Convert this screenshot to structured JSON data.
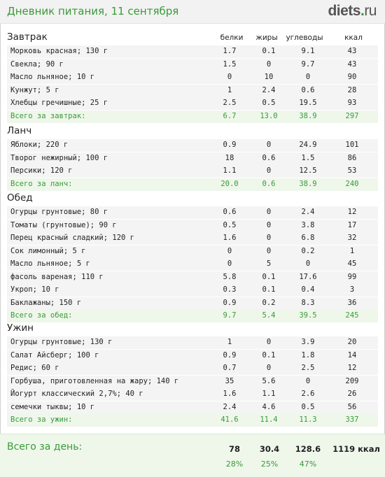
{
  "header": {
    "title": "Дневник питания, 11 сентября",
    "brand_main": "diets",
    "brand_dot": ".",
    "brand_tld": "ru"
  },
  "columns": {
    "protein": "белки",
    "fat": "жиры",
    "carbs": "углеводы",
    "kcal": "ккал"
  },
  "meals": [
    {
      "title": "Завтрак",
      "items": [
        {
          "name": "Морковь красная; 130 г",
          "p": "1.7",
          "f": "0.1",
          "c": "9.1",
          "k": "43"
        },
        {
          "name": "Свекла; 90 г",
          "p": "1.5",
          "f": "0",
          "c": "9.7",
          "k": "43"
        },
        {
          "name": "Масло льняное; 10 г",
          "p": "0",
          "f": "10",
          "c": "0",
          "k": "90"
        },
        {
          "name": "Кунжут; 5 г",
          "p": "1",
          "f": "2.4",
          "c": "0.6",
          "k": "28"
        },
        {
          "name": "Хлебцы гречишные; 25 г",
          "p": "2.5",
          "f": "0.5",
          "c": "19.5",
          "k": "93"
        }
      ],
      "total": {
        "name": "Всего за завтрак:",
        "p": "6.7",
        "f": "13.0",
        "c": "38.9",
        "k": "297"
      }
    },
    {
      "title": "Ланч",
      "items": [
        {
          "name": "Яблоки; 220 г",
          "p": "0.9",
          "f": "0",
          "c": "24.9",
          "k": "101"
        },
        {
          "name": "Творог нежирный; 100 г",
          "p": "18",
          "f": "0.6",
          "c": "1.5",
          "k": "86"
        },
        {
          "name": "Персики; 120 г",
          "p": "1.1",
          "f": "0",
          "c": "12.5",
          "k": "53"
        }
      ],
      "total": {
        "name": "Всего за ланч:",
        "p": "20.0",
        "f": "0.6",
        "c": "38.9",
        "k": "240"
      }
    },
    {
      "title": "Обед",
      "items": [
        {
          "name": "Огурцы грунтовые; 80 г",
          "p": "0.6",
          "f": "0",
          "c": "2.4",
          "k": "12"
        },
        {
          "name": "Томаты (грунтовые); 90 г",
          "p": "0.5",
          "f": "0",
          "c": "3.8",
          "k": "17"
        },
        {
          "name": "Перец красный сладкий; 120 г",
          "p": "1.6",
          "f": "0",
          "c": "6.8",
          "k": "32"
        },
        {
          "name": "Сок лимонный; 5 г",
          "p": "0",
          "f": "0",
          "c": "0.2",
          "k": "1"
        },
        {
          "name": "Масло льняное; 5 г",
          "p": "0",
          "f": "5",
          "c": "0",
          "k": "45"
        },
        {
          "name": "фасоль вареная; 110 г",
          "p": "5.8",
          "f": "0.1",
          "c": "17.6",
          "k": "99"
        },
        {
          "name": "Укроп; 10 г",
          "p": "0.3",
          "f": "0.1",
          "c": "0.4",
          "k": "3"
        },
        {
          "name": "Баклажаны; 150 г",
          "p": "0.9",
          "f": "0.2",
          "c": "8.3",
          "k": "36"
        }
      ],
      "total": {
        "name": "Всего за обед:",
        "p": "9.7",
        "f": "5.4",
        "c": "39.5",
        "k": "245"
      }
    },
    {
      "title": "Ужин",
      "items": [
        {
          "name": "Огурцы грунтовые; 130 г",
          "p": "1",
          "f": "0",
          "c": "3.9",
          "k": "20"
        },
        {
          "name": "Салат Айсберг; 100 г",
          "p": "0.9",
          "f": "0.1",
          "c": "1.8",
          "k": "14"
        },
        {
          "name": "Редис; 60 г",
          "p": "0.7",
          "f": "0",
          "c": "2.5",
          "k": "12"
        },
        {
          "name": "Горбуша, приготовленная на жару; 140 г",
          "p": "35",
          "f": "5.6",
          "c": "0",
          "k": "209"
        },
        {
          "name": "Йогурт классический 2,7%; 40 г",
          "p": "1.6",
          "f": "1.1",
          "c": "2.6",
          "k": "26"
        },
        {
          "name": "семечки тыквы; 10 г",
          "p": "2.4",
          "f": "4.6",
          "c": "0.5",
          "k": "56"
        }
      ],
      "total": {
        "name": "Всего за ужин:",
        "p": "41.6",
        "f": "11.4",
        "c": "11.3",
        "k": "337"
      }
    }
  ],
  "day_total": {
    "label": "Всего за день:",
    "p": "78",
    "f": "30.4",
    "c": "128.6",
    "k": "1119 ккал",
    "p_pct": "28%",
    "f_pct": "25%",
    "c_pct": "47%"
  },
  "colors": {
    "accent": "#3a9a3a",
    "row_bg": "#f4f4f4",
    "total_bg": "#eef7ea"
  }
}
